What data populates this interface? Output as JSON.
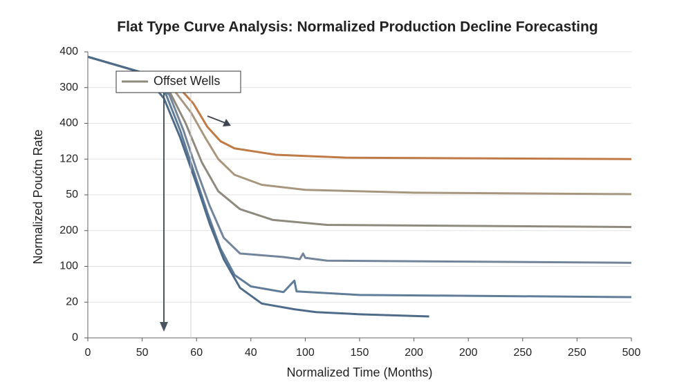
{
  "chart_data": {
    "type": "line",
    "title": "Flat Type Curve Analysis: Normalized Production Decline Forecasting",
    "xlabel": "Normalized Time (Months)",
    "ylabel": "Normalized Poućtn Rate",
    "xlim": [
      0,
      500
    ],
    "ylim": [
      0,
      400
    ],
    "xticks": [
      0,
      50,
      {
        "value": 100,
        "label": "60"
      },
      {
        "value": 150,
        "label": "40"
      },
      {
        "value": 200,
        "label": "100"
      },
      {
        "value": 250,
        "label": "150"
      },
      {
        "value": 300,
        "label": "200"
      },
      {
        "value": 350,
        "label": "200"
      },
      {
        "value": 400,
        "label": "250"
      },
      {
        "value": 450,
        "label": "250"
      },
      500
    ],
    "yticks": [
      0,
      {
        "value": 50,
        "label": "20"
      },
      100,
      {
        "value": 150,
        "label": "200"
      },
      {
        "value": 200,
        "label": "50"
      },
      {
        "value": 250,
        "label": "120"
      },
      {
        "value": 300,
        "label": "400"
      },
      {
        "value": 350,
        "label": "300"
      },
      400
    ],
    "grid": true,
    "legend": "upper left",
    "series": [
      {
        "color": "#c07a45",
        "x": [
          0,
          50,
          85,
          97,
          110,
          122,
          135,
          173,
          237,
          500
        ],
        "values": [
          393,
          371,
          348,
          328,
          295,
          275,
          265,
          256,
          252,
          250
        ]
      },
      {
        "color": "#a8977f",
        "x": [
          0,
          50,
          80,
          95,
          108,
          120,
          135,
          160,
          200,
          300,
          500
        ],
        "values": [
          393,
          371,
          345,
          315,
          280,
          250,
          228,
          214,
          207,
          203,
          201
        ]
      },
      {
        "name": "Offset Wells",
        "color": "#8f8a7e",
        "x": [
          0,
          50,
          75,
          90,
          105,
          120,
          140,
          170,
          220,
          500
        ],
        "values": [
          393,
          371,
          345,
          300,
          245,
          205,
          180,
          165,
          158,
          155
        ]
      },
      {
        "color": "#72859a",
        "x": [
          0,
          50,
          75,
          88,
          100,
          112,
          125,
          140,
          180,
          195,
          198,
          200,
          220,
          500
        ],
        "values": [
          393,
          371,
          340,
          290,
          235,
          185,
          140,
          118,
          113,
          110,
          118,
          112,
          108,
          105
        ]
      },
      {
        "color": "#607c98",
        "x": [
          0,
          50,
          72,
          85,
          98,
          110,
          122,
          135,
          150,
          180,
          190,
          192,
          250,
          500
        ],
        "values": [
          393,
          371,
          340,
          290,
          230,
          175,
          125,
          88,
          72,
          64,
          80,
          65,
          60,
          57
        ]
      },
      {
        "color": "#4f6b8a",
        "x": [
          0,
          50,
          70,
          85,
          100,
          112,
          125,
          140,
          160,
          190,
          210,
          250,
          314
        ],
        "values": [
          393,
          371,
          335,
          280,
          215,
          160,
          110,
          70,
          48,
          40,
          36,
          33,
          30
        ]
      }
    ]
  }
}
